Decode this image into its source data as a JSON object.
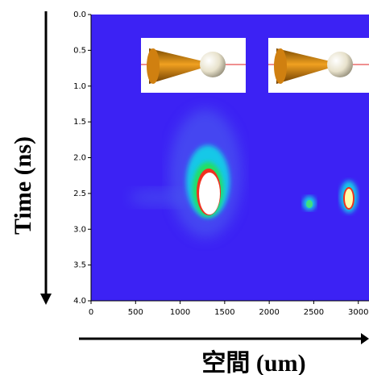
{
  "chart_data": {
    "type": "image",
    "xlabel": "空間 (um)",
    "ylabel": "Time (ns)",
    "xlim": [
      0,
      3120
    ],
    "ylim": [
      0,
      4
    ],
    "xticks": [
      0,
      500,
      1000,
      1500,
      2000,
      2500,
      3000
    ],
    "yticks": [
      {
        "value": 0,
        "label": "0.0"
      },
      0.5,
      {
        "value": 1,
        "label": "1.0"
      },
      1.5,
      {
        "value": 2,
        "label": "2.0"
      },
      2.5,
      {
        "value": 3,
        "label": "3.0"
      },
      3.5,
      {
        "value": 4,
        "label": "4.0"
      }
    ],
    "y_inverted": true
  }
}
